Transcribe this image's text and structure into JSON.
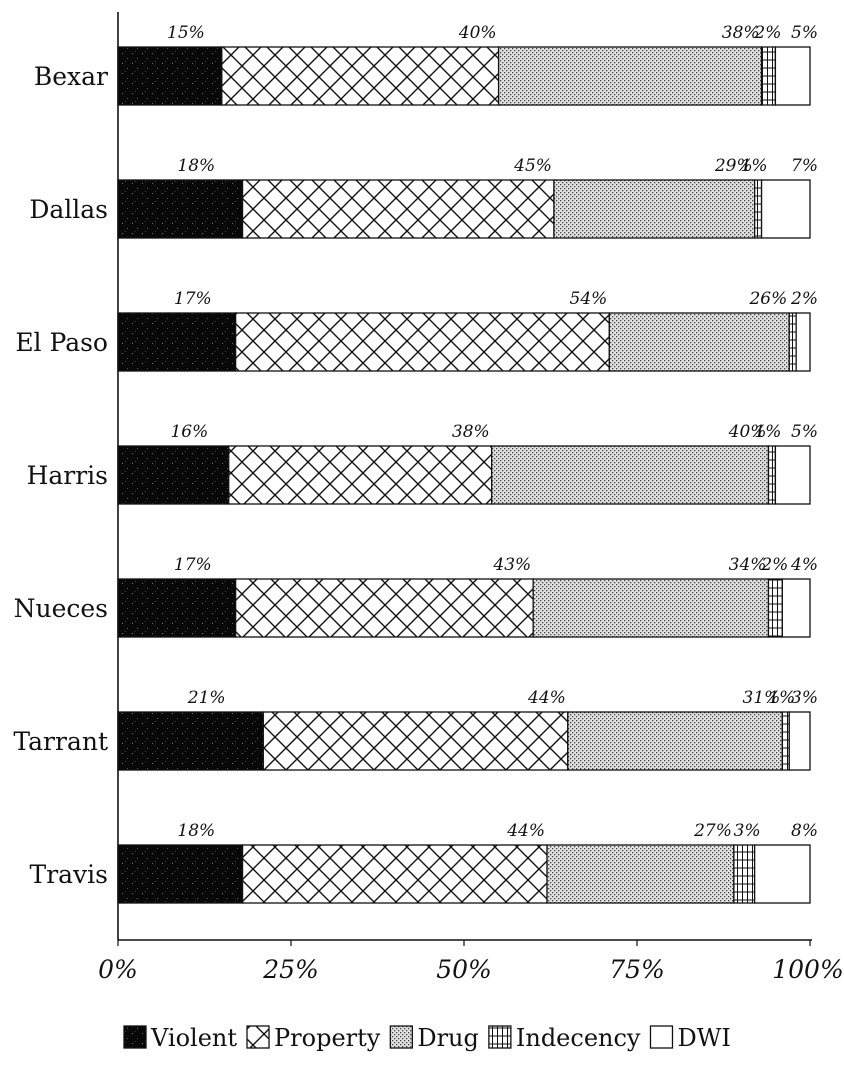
{
  "chart_data": {
    "type": "bar",
    "orientation": "horizontal",
    "stacked": true,
    "title": "",
    "xlabel": "",
    "ylabel": "",
    "xlim": [
      0,
      100
    ],
    "x_ticks": [
      0,
      25,
      50,
      75,
      100
    ],
    "x_tick_labels": [
      "0%",
      "25%",
      "50%",
      "75%",
      "100%"
    ],
    "categories": [
      "Bexar",
      "Dallas",
      "El Paso",
      "Harris",
      "Nueces",
      "Tarrant",
      "Travis"
    ],
    "series": [
      {
        "name": "Violent",
        "pattern": "speckled-black",
        "values": [
          15,
          18,
          17,
          16,
          17,
          21,
          18
        ]
      },
      {
        "name": "Property",
        "pattern": "crosshatch",
        "values": [
          40,
          45,
          54,
          38,
          43,
          44,
          44
        ]
      },
      {
        "name": "Drug",
        "pattern": "dotted-gray",
        "values": [
          38,
          29,
          26,
          40,
          34,
          31,
          27
        ]
      },
      {
        "name": "Indecency",
        "pattern": "grid",
        "values": [
          2,
          1,
          1,
          1,
          2,
          1,
          3
        ]
      },
      {
        "name": "DWI",
        "pattern": "white",
        "values": [
          5,
          7,
          2,
          5,
          4,
          3,
          8
        ]
      }
    ],
    "data_labels": [
      [
        "15%",
        "40%",
        "38%",
        "2%",
        "5%"
      ],
      [
        "18%",
        "45%",
        "29%",
        "1%",
        "7%"
      ],
      [
        "17%",
        "54%",
        "26%",
        "",
        "2%"
      ],
      [
        "16%",
        "38%",
        "40%",
        "1%",
        "5%"
      ],
      [
        "17%",
        "43%",
        "34%",
        "2%",
        "4%"
      ],
      [
        "21%",
        "44%",
        "31%",
        "1%",
        "3%"
      ],
      [
        "18%",
        "44%",
        "27%",
        "3%",
        "8%"
      ]
    ],
    "legend_position": "bottom-center",
    "grid": false
  }
}
